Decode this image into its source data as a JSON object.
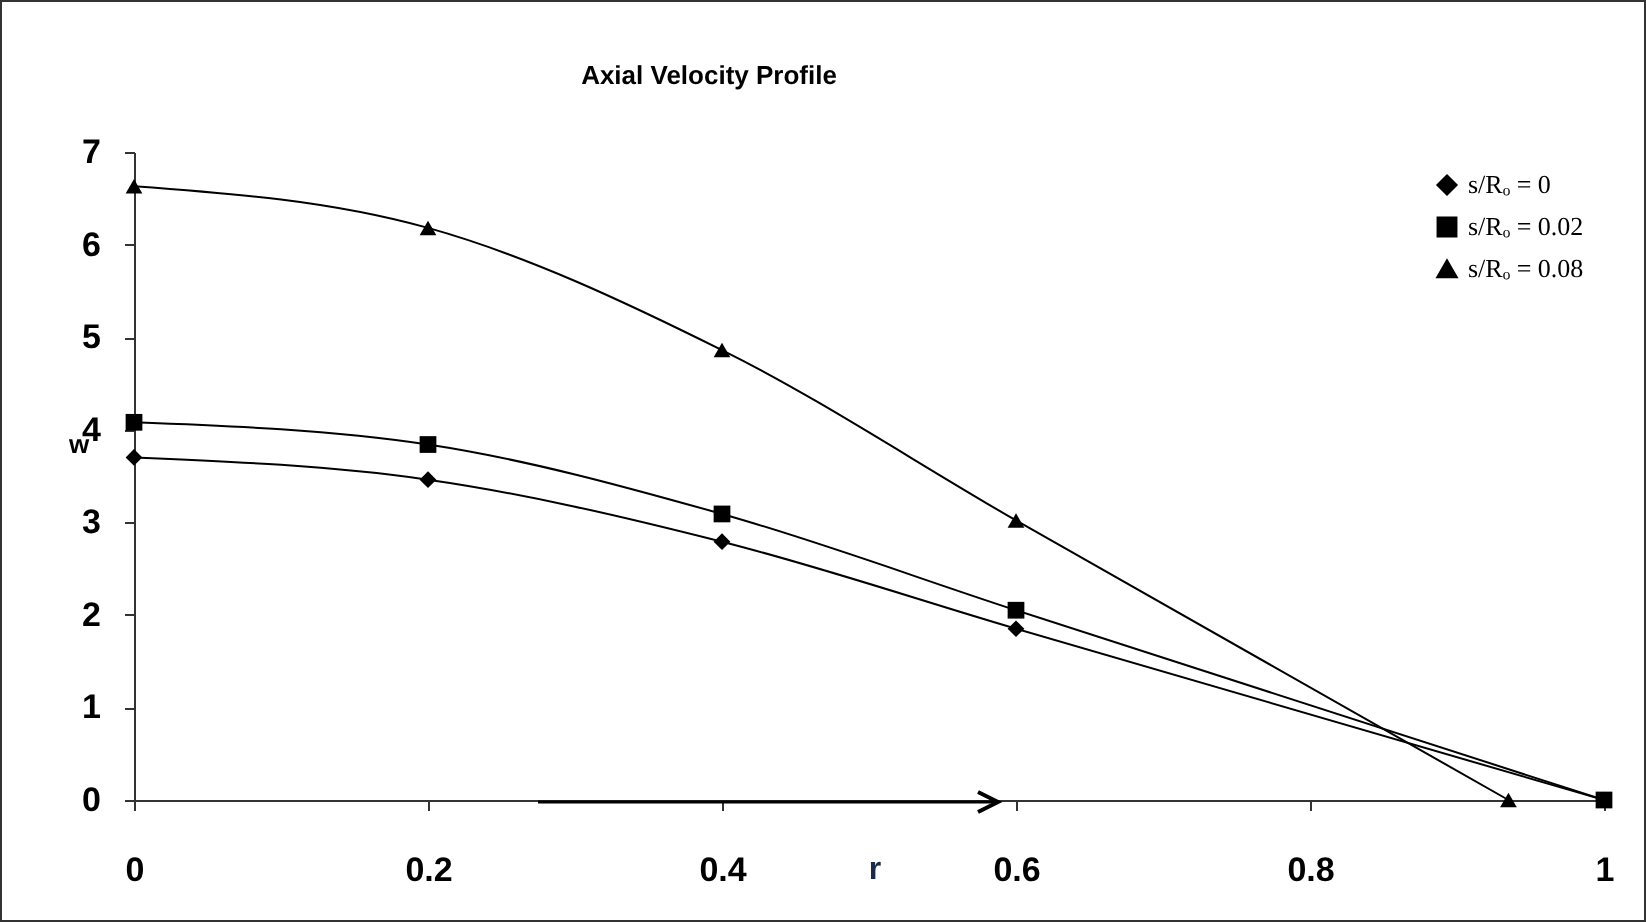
{
  "chart_data": {
    "type": "line",
    "title": "Axial Velocity Profile",
    "xlabel": "r",
    "ylabel": "w",
    "xlim": [
      0,
      1
    ],
    "xticks": [
      0,
      0.2,
      0.4,
      0.6,
      0.8,
      1
    ],
    "ylim": [
      0,
      7
    ],
    "yticks": [
      0,
      1,
      2,
      3,
      4,
      5,
      6,
      7
    ],
    "grid": false,
    "legend": "top right",
    "line_style": "solid",
    "series": [
      {
        "name": "s/Rₒ = 0",
        "color": "#000000",
        "marker": "diamond",
        "x": [
          0,
          0.2,
          0.4,
          0.6,
          1
        ],
        "values": [
          3.7,
          3.46,
          2.79,
          1.85,
          0
        ]
      },
      {
        "name": "s/Rₒ = 0.02",
        "color": "#000000",
        "marker": "square",
        "x": [
          0,
          0.2,
          0.4,
          0.6,
          1
        ],
        "values": [
          4.08,
          3.84,
          3.09,
          2.05,
          0
        ]
      },
      {
        "name": "s/Rₒ = 0.08",
        "color": "#000000",
        "marker": "triangle",
        "x": [
          0,
          0.2,
          0.4,
          0.6,
          0.935
        ],
        "values": [
          6.63,
          6.18,
          4.86,
          3.02,
          0
        ]
      }
    ]
  }
}
